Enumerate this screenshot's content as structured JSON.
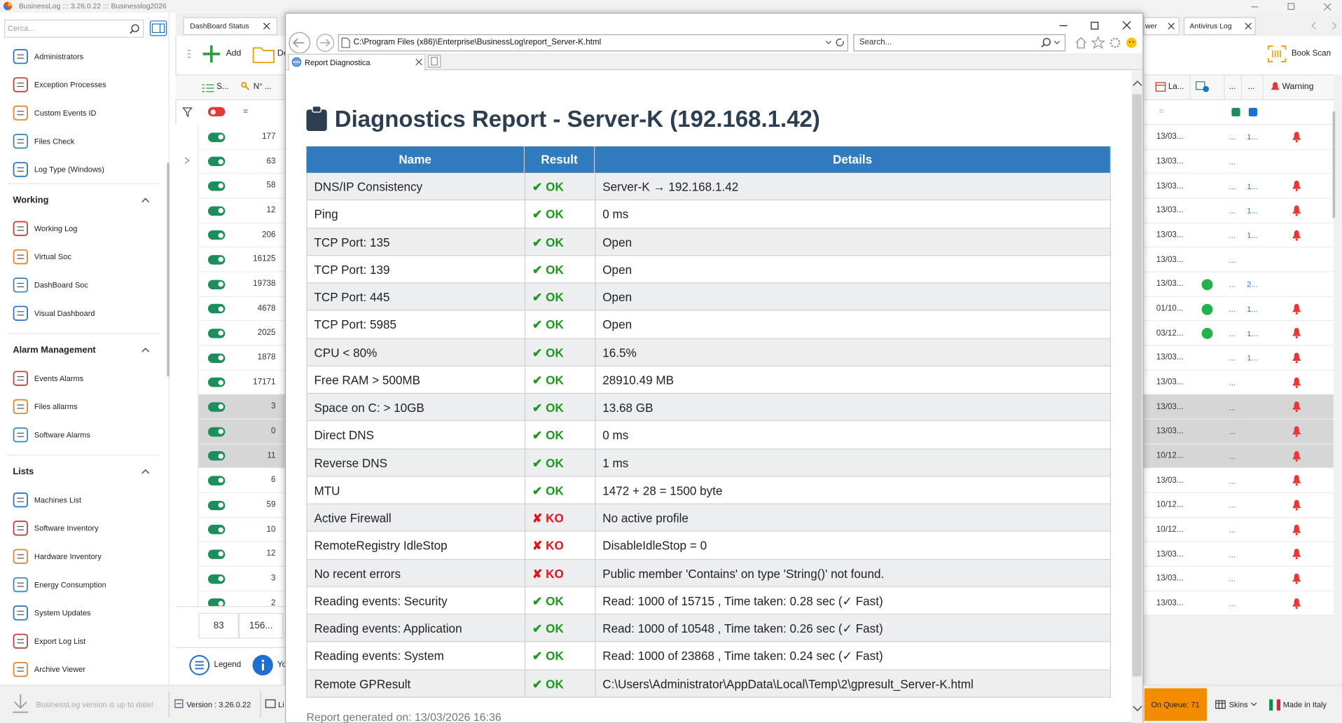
{
  "app": {
    "title": "BusinessLog ::: 3.26.0.22 ::: Businesslog2026",
    "search_placeholder": "Cerca...",
    "nav_top": [
      "Administrators",
      "Exception Processes",
      "Custom Events ID",
      "Files Check",
      "Log Type (Windows)"
    ],
    "nav_sections": [
      {
        "title": "Working",
        "items": [
          "Working Log",
          "Virtual Soc",
          "DashBoard Soc",
          "Visual Dashboard"
        ]
      },
      {
        "title": "Alarm Management",
        "items": [
          "Events Alarms",
          "Files allarms",
          "Software Alarms"
        ]
      },
      {
        "title": "Lists",
        "items": [
          "Machines List",
          "Software Inventory",
          "Hardware Inventory",
          "Energy Consumption",
          "System Updates",
          "Export Log List",
          "Archive Viewer"
        ]
      }
    ]
  },
  "grid": {
    "tab": "DashBoard Status",
    "add_button": "Add",
    "second_button": "De",
    "columns": [
      "S...",
      "N° ..."
    ],
    "filter": "=",
    "rows": [
      {
        "value": 177
      },
      {
        "value": 63
      },
      {
        "value": 58
      },
      {
        "value": 12
      },
      {
        "value": 206
      },
      {
        "value": 16125
      },
      {
        "value": 19738
      },
      {
        "value": 4678
      },
      {
        "value": 2025
      },
      {
        "value": 1878
      },
      {
        "value": 17171
      },
      {
        "value": 3,
        "selected": true
      },
      {
        "value": 0,
        "selected": true
      },
      {
        "value": 11,
        "selected": true
      },
      {
        "value": 6
      },
      {
        "value": 59
      },
      {
        "value": 10
      },
      {
        "value": 12
      },
      {
        "value": 3
      },
      {
        "value": 2
      }
    ],
    "footer": [
      "83",
      "156..."
    ],
    "legend_button": "Legend",
    "info_button": "Yo"
  },
  "browser": {
    "url": "C:\\Program Files (x86)\\Enterprise\\BusinessLog\\report_Server-K.html",
    "search": "Search...",
    "tab": "Report Diagnostica",
    "report": {
      "title": "Diagnostics Report - Server-K (192.168.1.42)",
      "header_color": "#2f7bbd",
      "columns": [
        "Name",
        "Result",
        "Details"
      ],
      "rows": [
        {
          "name": "DNS/IP Consistency",
          "result": "✔ OK",
          "color": "#1a9a1a",
          "details": "Server-K → 192.168.1.42"
        },
        {
          "name": "Ping",
          "result": "✔ OK",
          "color": "#1a9a1a",
          "details": "0 ms"
        },
        {
          "name": "TCP Port: 135",
          "result": "✔ OK",
          "color": "#1a9a1a",
          "details": "Open"
        },
        {
          "name": "TCP Port: 139",
          "result": "✔ OK",
          "color": "#1a9a1a",
          "details": "Open"
        },
        {
          "name": "TCP Port: 445",
          "result": "✔ OK",
          "color": "#1a9a1a",
          "details": "Open"
        },
        {
          "name": "TCP Port: 5985",
          "result": "✔ OK",
          "color": "#1a9a1a",
          "details": "Open"
        },
        {
          "name": "CPU < 80%",
          "result": "✔ OK",
          "color": "#1a9a1a",
          "details": "16.5%"
        },
        {
          "name": "Free RAM > 500MB",
          "result": "✔ OK",
          "color": "#1a9a1a",
          "details": "28910.49 MB"
        },
        {
          "name": "Space on C: > 10GB",
          "result": "✔ OK",
          "color": "#1a9a1a",
          "details": "13.68 GB"
        },
        {
          "name": "Direct DNS",
          "result": "✔ OK",
          "color": "#1a9a1a",
          "details": "0 ms"
        },
        {
          "name": "Reverse DNS",
          "result": "✔ OK",
          "color": "#1a9a1a",
          "details": "1 ms"
        },
        {
          "name": "MTU",
          "result": "✔ OK",
          "color": "#1a9a1a",
          "details": "1472 + 28 = 1500 byte"
        },
        {
          "name": "Active Firewall",
          "result": "✘ KO",
          "color": "#e3121b",
          "details": "No active profile"
        },
        {
          "name": "RemoteRegistry IdleStop",
          "result": "✘ KO",
          "color": "#e3121b",
          "details": "DisableIdleStop = 0"
        },
        {
          "name": "No recent errors",
          "result": "✘ KO",
          "color": "#e3121b",
          "details": "Public member 'Contains' on type 'String()' not found."
        },
        {
          "name": "Reading events: Security",
          "result": "✔ OK",
          "color": "#1a9a1a",
          "details": "Read: 1000 of 15715 , Time taken: 0.28 sec (✓ Fast)"
        },
        {
          "name": "Reading events: Application",
          "result": "✔ OK",
          "color": "#1a9a1a",
          "details": "Read: 1000 of 10548 , Time taken: 0.26 sec (✓ Fast)"
        },
        {
          "name": "Reading events: System",
          "result": "✔ OK",
          "color": "#1a9a1a",
          "details": "Read: 1000 of 23868 , Time taken: 0.24 sec (✓ Fast)"
        },
        {
          "name": "Remote GPResult",
          "result": "✔ OK",
          "color": "#1a9a1a",
          "details": "C:\\Users\\Administrator\\AppData\\Local\\Temp\\2\\gpresult_Server-K.html"
        }
      ],
      "footer": "Report generated on: 13/03/2026 16:36"
    }
  },
  "right_panel": {
    "tabs": [
      "wer",
      "Antivirus Log"
    ],
    "book_scan": "Book Scan",
    "columns": [
      "La...",
      "...",
      "...",
      "Warning"
    ],
    "filter": "=",
    "rows": [
      {
        "date": "13/03...",
        "more": "...",
        "ref": "1...",
        "bell": true
      },
      {
        "date": "13/03...",
        "more": "..."
      },
      {
        "date": "13/03...",
        "more": "...",
        "ref": "1...",
        "bell": true
      },
      {
        "date": "13/03...",
        "more": "...",
        "ref": "1...",
        "bell": true
      },
      {
        "date": "13/03...",
        "more": "...",
        "ref": "1...",
        "bell": true
      },
      {
        "date": "13/03...",
        "more": "..."
      },
      {
        "date": "13/03...",
        "more": "...",
        "ref": "2...",
        "dot": true
      },
      {
        "date": "01/10...",
        "more": "...",
        "ref": "1...",
        "dot": true,
        "bell": true
      },
      {
        "date": "03/12...",
        "more": "...",
        "ref": "1...",
        "dot": true,
        "bell": true
      },
      {
        "date": "13/03...",
        "more": "...",
        "ref": "1...",
        "bell": true
      },
      {
        "date": "13/03...",
        "more": "...",
        "bell": true
      },
      {
        "date": "13/03...",
        "more": "...",
        "bell": true,
        "selected": true
      },
      {
        "date": "13/03...",
        "more": "...",
        "bell": true,
        "selected": true
      },
      {
        "date": "10/12...",
        "more": "...",
        "bell": true,
        "selected": true
      },
      {
        "date": "13/03...",
        "more": "...",
        "bell": true
      },
      {
        "date": "10/12...",
        "more": "...",
        "bell": true
      },
      {
        "date": "10/12...",
        "more": "...",
        "bell": true
      },
      {
        "date": "13/03...",
        "more": "...",
        "bell": true
      },
      {
        "date": "13/03...",
        "more": "...",
        "bell": true
      },
      {
        "date": "13/03...",
        "more": "...",
        "bell": true
      }
    ]
  },
  "status_bar": {
    "update": "BusinessLog version is up to date!",
    "version": "Version : 3.26.0.22",
    "license": "Li",
    "queue": "On Queue: 71",
    "skins": "Skins",
    "made_in": "Made in Italy"
  }
}
